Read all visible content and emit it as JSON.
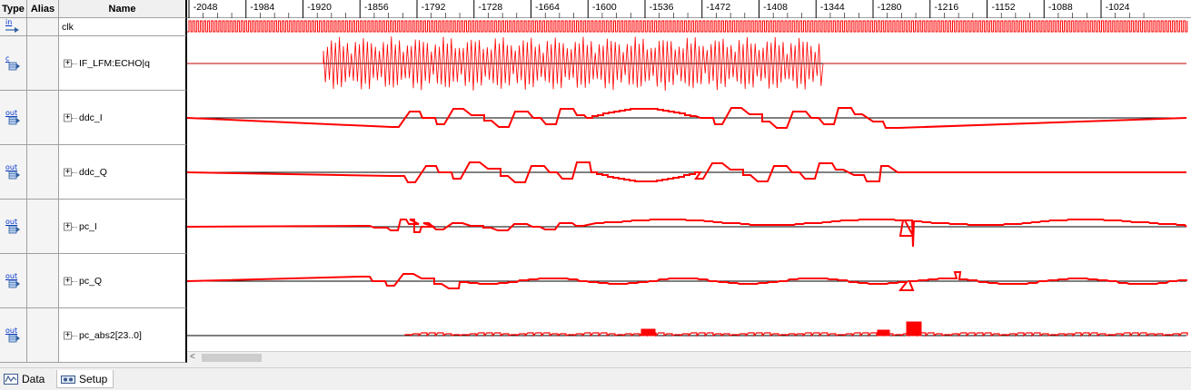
{
  "header": {
    "type_label": "Type",
    "alias_label": "Alias",
    "name_label": "Name"
  },
  "timeline": {
    "ticks": [
      "-2048",
      "-1984",
      "-1920",
      "-1856",
      "-1792",
      "-1728",
      "-1664",
      "-1600",
      "-1536",
      "-1472",
      "-1408",
      "-1344",
      "-1280",
      "-1216",
      "-1152",
      "-1088",
      "-1024"
    ]
  },
  "signals": [
    {
      "type": "in",
      "name": "clk",
      "expandable": false,
      "icon": "input-pin-icon"
    },
    {
      "type": "c",
      "name": "IF_LFM:ECHO|q",
      "expandable": true,
      "icon": "combinational-node-icon"
    },
    {
      "type": "out",
      "name": "ddc_I",
      "expandable": true,
      "icon": "output-pin-icon"
    },
    {
      "type": "out",
      "name": "ddc_Q",
      "expandable": true,
      "icon": "output-pin-icon"
    },
    {
      "type": "out",
      "name": "pc_I",
      "expandable": true,
      "icon": "output-pin-icon"
    },
    {
      "type": "out",
      "name": "pc_Q",
      "expandable": true,
      "icon": "output-pin-icon"
    },
    {
      "type": "out",
      "name": "pc_abs2[23..0]",
      "expandable": true,
      "icon": "output-pin-icon"
    }
  ],
  "expand_symbol": "+",
  "waveform_color": "#ff0000",
  "scroll": {
    "left_arrow": "<"
  },
  "tabs": [
    {
      "label": "Data",
      "icon": "data-tab-icon",
      "active": false
    },
    {
      "label": "Setup",
      "icon": "setup-tab-icon",
      "active": true
    }
  ]
}
